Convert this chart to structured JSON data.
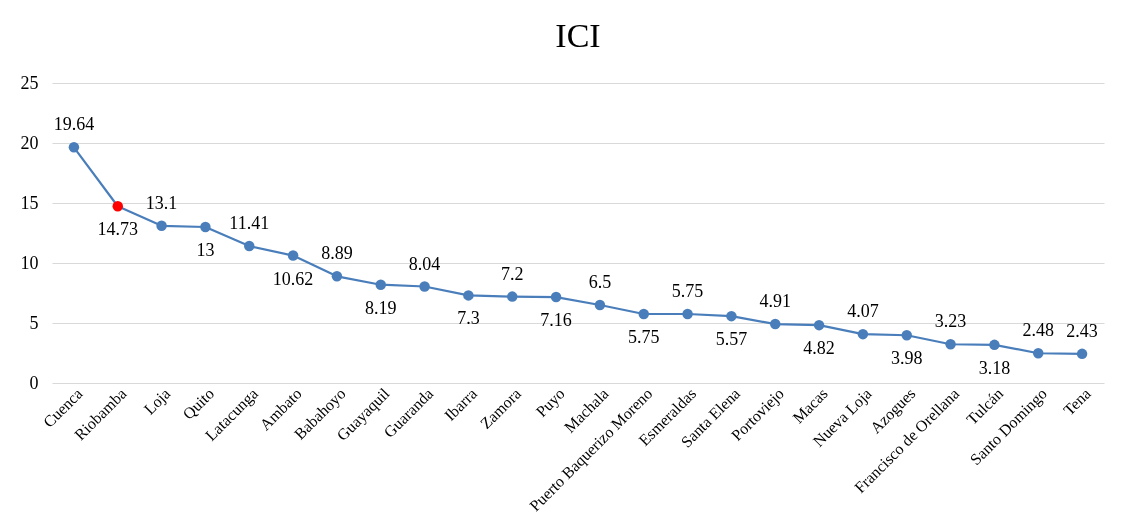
{
  "chart_data": {
    "type": "line",
    "title": "ICI",
    "categories": [
      "Cuenca",
      "Riobamba",
      "Loja",
      "Quito",
      "Latacunga",
      "Ambato",
      "Babahoyo",
      "Guayaquil",
      "Guaranda",
      "Ibarra",
      "Zamora",
      "Puyo",
      "Machala",
      "Puerto Baquerizo Moreno",
      "Esmeraldas",
      "Santa Elena",
      "Portoviejo",
      "Macas",
      "Nueva Loja",
      "Azogues",
      "Francisco de Orellana",
      "Tulcán",
      "Santo Domingo",
      "Tena"
    ],
    "series": [
      {
        "color": "#4a7ebb",
        "colors": [
          "#4a7ebb",
          "#ff0000",
          "#4a7ebb",
          "#4a7ebb",
          "#4a7ebb",
          "#4a7ebb",
          "#4a7ebb",
          "#4a7ebb",
          "#4a7ebb",
          "#4a7ebb",
          "#4a7ebb",
          "#4a7ebb",
          "#4a7ebb",
          "#4a7ebb",
          "#4a7ebb",
          "#4a7ebb",
          "#4a7ebb",
          "#4a7ebb",
          "#4a7ebb",
          "#4a7ebb",
          "#4a7ebb",
          "#4a7ebb",
          "#4a7ebb",
          "#4a7ebb"
        ],
        "values": [
          19.64,
          14.73,
          13.1,
          13,
          11.41,
          10.62,
          8.89,
          8.19,
          8.04,
          7.3,
          7.2,
          7.16,
          6.5,
          5.75,
          5.75,
          5.57,
          4.91,
          4.82,
          4.07,
          3.98,
          3.23,
          3.18,
          2.48,
          2.43
        ]
      }
    ],
    "ylim": [
      0,
      25
    ],
    "yticks": [
      0,
      5,
      10,
      15,
      20,
      25
    ],
    "grid": "y",
    "marker": "circle",
    "line_style": "solid",
    "data_labels": true
  }
}
